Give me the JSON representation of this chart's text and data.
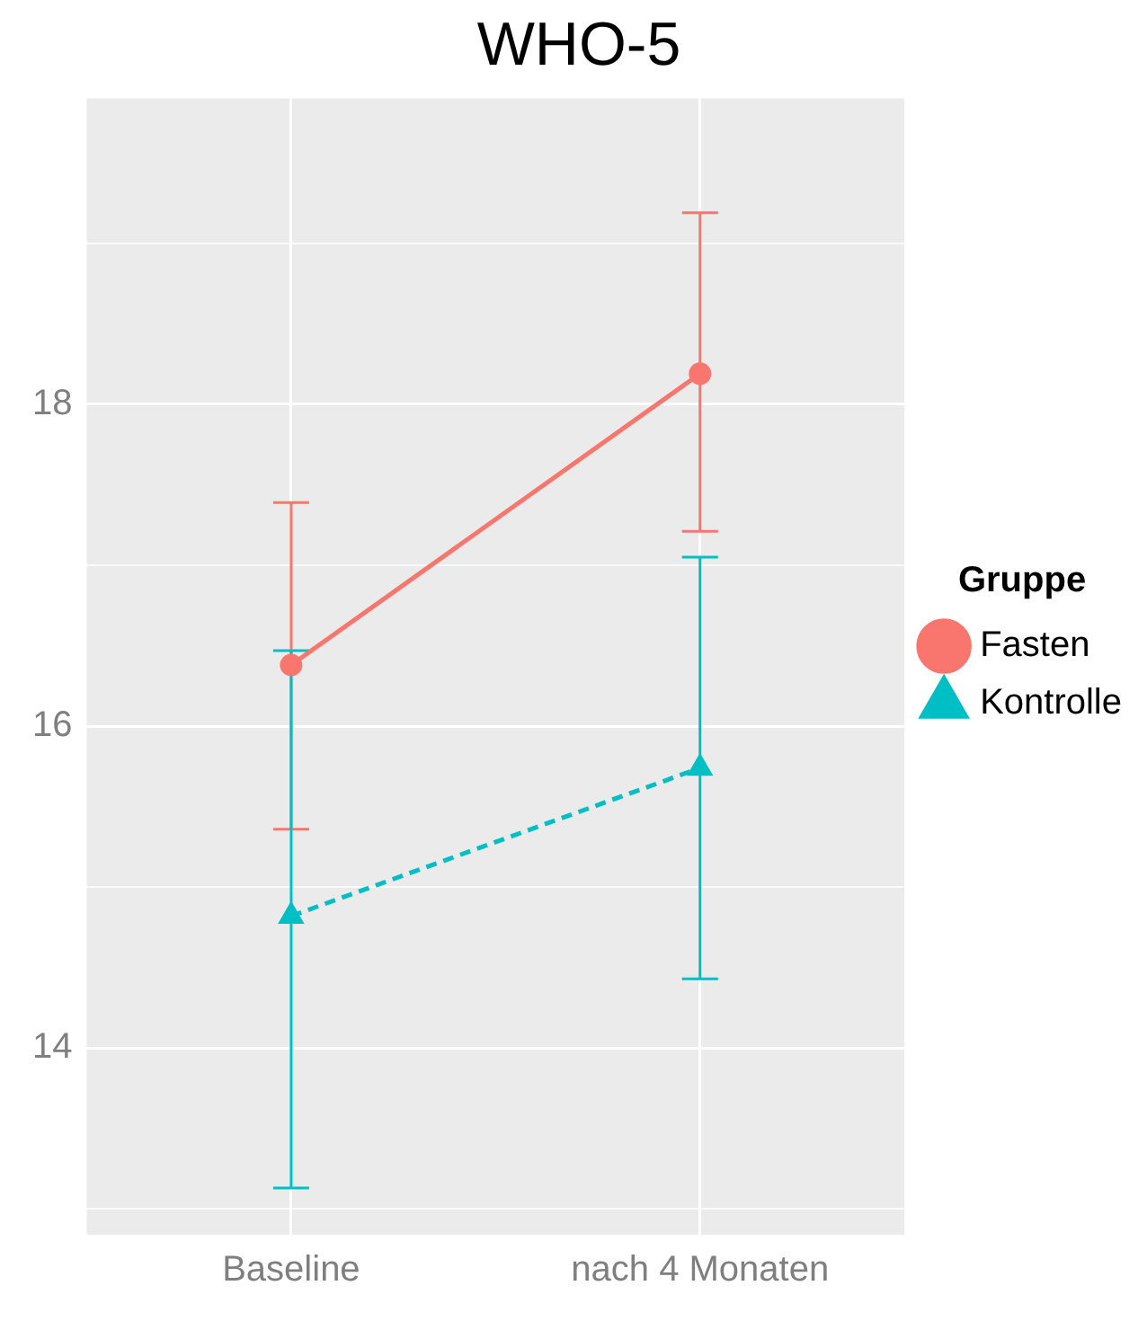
{
  "chart_data": {
    "type": "line",
    "title": "WHO-5",
    "legend_title": "Gruppe",
    "categories": [
      "Baseline",
      "nach 4 Monaten"
    ],
    "series": [
      {
        "name": "Fasten",
        "color": "#f8766d",
        "marker": "circle",
        "line_style": "solid",
        "values": [
          16.38,
          18.19
        ],
        "errors": [
          [
            15.36,
            17.39
          ],
          [
            17.21,
            19.19
          ]
        ]
      },
      {
        "name": "Kontrolle",
        "color": "#00bfc4",
        "marker": "triangle",
        "line_style": "dashed",
        "values": [
          14.82,
          15.74
        ],
        "errors": [
          [
            13.13,
            16.47
          ],
          [
            14.43,
            17.05
          ]
        ]
      }
    ],
    "ylim": [
      12.84,
      19.9
    ],
    "yticks": [
      {
        "value": 13,
        "label": null
      },
      14,
      {
        "value": 15,
        "label": null
      },
      16,
      {
        "value": 17,
        "label": null
      },
      18,
      {
        "value": 19,
        "label": null
      }
    ],
    "grid": true,
    "legend": "right"
  }
}
